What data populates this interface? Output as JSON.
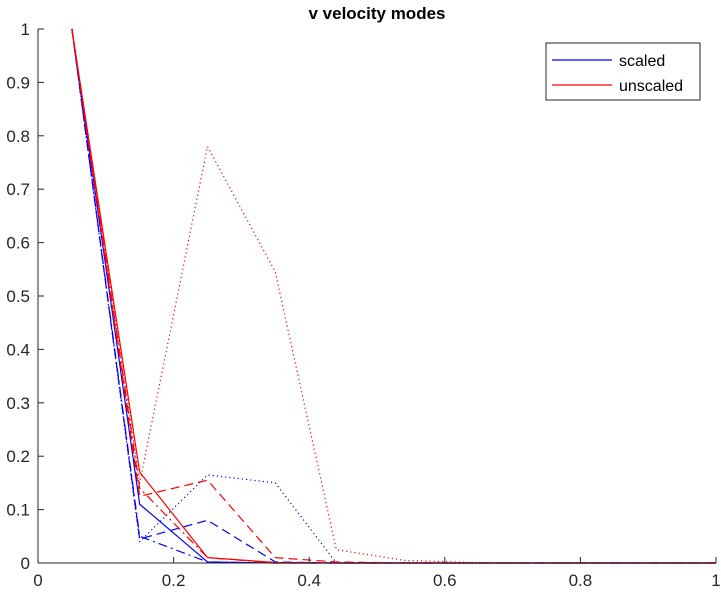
{
  "chart_data": {
    "type": "line",
    "title": "v velocity modes",
    "xlabel": "",
    "ylabel": "",
    "xlim": [
      0,
      1
    ],
    "ylim": [
      0,
      1
    ],
    "xticks": [
      0,
      0.2,
      0.4,
      0.6,
      0.8,
      1
    ],
    "xtick_labels": [
      "0",
      "0.2",
      "0.4",
      "0.6",
      "0.8",
      "1"
    ],
    "yticks": [
      0,
      0.1,
      0.2,
      0.3,
      0.4,
      0.5,
      0.6,
      0.7,
      0.8,
      0.9,
      1
    ],
    "ytick_labels": [
      "0",
      "0.1",
      "0.2",
      "0.3",
      "0.4",
      "0.5",
      "0.6",
      "0.7",
      "0.8",
      "0.9",
      "1"
    ],
    "grid": false,
    "legend": {
      "position": "top-right",
      "entries": [
        {
          "label": "scaled",
          "color": "#0000ff"
        },
        {
          "label": "unscaled",
          "color": "#ff0000"
        }
      ]
    },
    "series": [
      {
        "color": "#0000ff",
        "style": "solid",
        "x": [
          0.05,
          0.15,
          0.25,
          0.35,
          0.44,
          0.54,
          0.64,
          0.74,
          0.84,
          0.94,
          1.0
        ],
        "values": [
          1.0,
          0.11,
          0.002,
          0.0,
          0.0,
          0.0,
          0.0,
          0.0,
          0.0,
          0.0,
          0.0
        ]
      },
      {
        "color": "#0000ff",
        "style": "dashed",
        "x": [
          0.05,
          0.15,
          0.25,
          0.35,
          0.44,
          0.54,
          0.64,
          0.74,
          0.84,
          0.94,
          1.0
        ],
        "values": [
          1.0,
          0.045,
          0.08,
          0.002,
          0.0,
          0.0,
          0.0,
          0.0,
          0.0,
          0.0,
          0.0
        ]
      },
      {
        "color": "#0000ff",
        "style": "dotted",
        "x": [
          0.05,
          0.15,
          0.25,
          0.35,
          0.44,
          0.54,
          0.64,
          0.74,
          0.84,
          0.94,
          1.0
        ],
        "values": [
          1.0,
          0.04,
          0.165,
          0.15,
          0.0,
          0.0,
          0.0,
          0.0,
          0.0,
          0.0,
          0.0
        ]
      },
      {
        "color": "#0000ff",
        "style": "dashdot",
        "x": [
          0.05,
          0.15,
          0.25,
          0.35,
          0.44,
          0.54,
          0.64,
          0.74,
          0.84,
          0.94,
          1.0
        ],
        "values": [
          1.0,
          0.05,
          0.002,
          0.0,
          0.0,
          0.0,
          0.0,
          0.0,
          0.0,
          0.0,
          0.0
        ]
      },
      {
        "color": "#ff0000",
        "style": "solid",
        "x": [
          0.05,
          0.15,
          0.25,
          0.35,
          0.44,
          0.54,
          0.64,
          0.74,
          0.84,
          0.94,
          1.0
        ],
        "values": [
          1.0,
          0.17,
          0.01,
          0.001,
          0.0,
          0.0,
          0.0,
          0.0,
          0.0,
          0.0,
          0.0
        ]
      },
      {
        "color": "#ff0000",
        "style": "dashed",
        "x": [
          0.05,
          0.15,
          0.25,
          0.35,
          0.44,
          0.54,
          0.64,
          0.74,
          0.84,
          0.94,
          1.0
        ],
        "values": [
          1.0,
          0.125,
          0.155,
          0.01,
          0.002,
          0.0,
          0.0,
          0.0,
          0.0,
          0.0,
          0.0
        ]
      },
      {
        "color": "#ff0000",
        "style": "dotted",
        "x": [
          0.05,
          0.15,
          0.25,
          0.35,
          0.44,
          0.54,
          0.64,
          0.74,
          0.84,
          0.94,
          1.0
        ],
        "values": [
          1.0,
          0.15,
          0.78,
          0.545,
          0.025,
          0.005,
          0.001,
          0.0,
          0.0,
          0.0,
          0.0
        ]
      },
      {
        "color": "#ff0000",
        "style": "dashdot",
        "x": [
          0.05,
          0.15,
          0.25,
          0.35,
          0.44,
          0.54,
          0.64,
          0.74,
          0.84,
          0.94,
          1.0
        ],
        "values": [
          1.0,
          0.14,
          0.01,
          0.0,
          0.0,
          0.0,
          0.0,
          0.0,
          0.0,
          0.0,
          0.0
        ]
      }
    ]
  }
}
